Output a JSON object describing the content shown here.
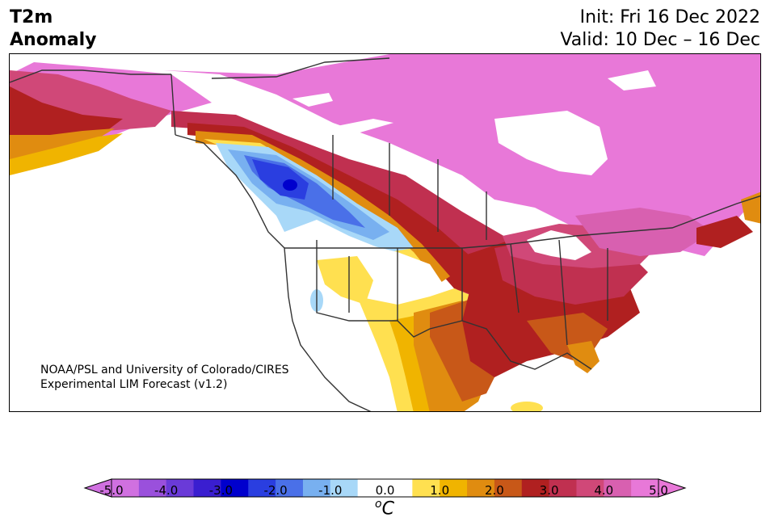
{
  "header": {
    "title_line1": "T2m",
    "title_line2": "Anomaly",
    "init": "Init: Fri 16 Dec 2022",
    "valid": "Valid: 10 Dec – 16 Dec"
  },
  "map": {
    "credit_line1": "NOAA/PSL and University of Colorado/CIRES",
    "credit_line2": "Experimental LIM Forecast (v1.2)",
    "region": "North America",
    "variable": "2m temperature anomaly",
    "patterns": [
      {
        "area": "Canada north and east",
        "anomaly_c": "above 5.0"
      },
      {
        "area": "Alaska west coast",
        "anomaly_c": "3.0 to 5.0"
      },
      {
        "area": "British Columbia / Alberta",
        "anomaly_c": "-3.0 to -1.0"
      },
      {
        "area": "US Southern Plains, Southeast",
        "anomaly_c": "2.5 to 4.5"
      },
      {
        "area": "US Northeast",
        "anomaly_c": "3.5 to 5.0"
      },
      {
        "area": "US Southwest / Mexico",
        "anomaly_c": "0.5 to 2.0"
      }
    ]
  },
  "colorbar": {
    "unit_base": "C",
    "unit_sup": "o",
    "ticks": [
      "-5.0",
      "-4.0",
      "-3.0",
      "-2.0",
      "-1.0",
      "0.0",
      "1.0",
      "2.0",
      "3.0",
      "4.0",
      "5.0"
    ],
    "colors": [
      "#d070e0",
      "#9a50dc",
      "#6a3ad8",
      "#3a1ed0",
      "#0000cd",
      "#2a3ee0",
      "#4a70e8",
      "#78b0f0",
      "#a8d8f8",
      "#ffffff",
      "#ffffff",
      "#ffe050",
      "#f0b400",
      "#e08c10",
      "#c85818",
      "#b02020",
      "#c03050",
      "#d04878",
      "#d860b0",
      "#e878d8"
    ],
    "under_color": "#d070e0",
    "over_color": "#e878d8"
  }
}
